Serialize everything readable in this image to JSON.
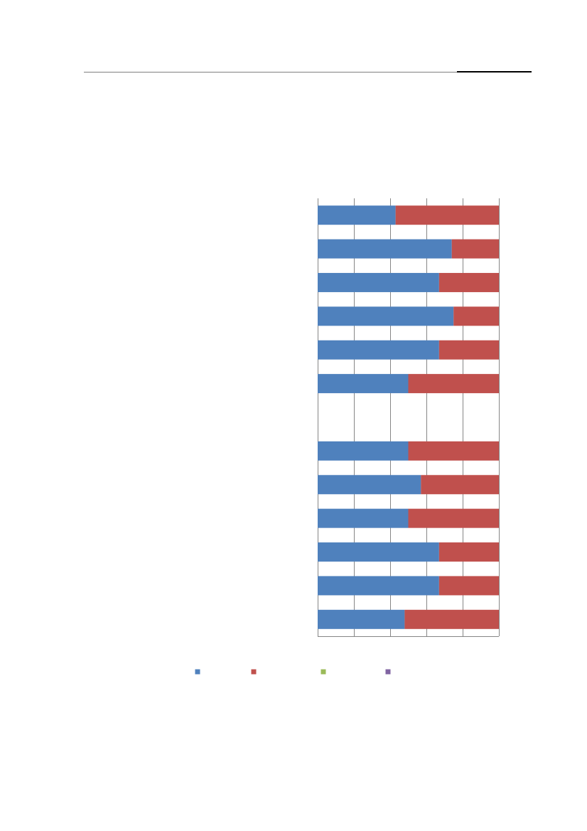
{
  "colors": {
    "series_1": "#4f81bd",
    "series_2": "#c0504d",
    "series_3": "#9bbb59",
    "series_4": "#8064a2",
    "gridline": "#868686",
    "header_rule": "#7f7f7f"
  },
  "chart_data": {
    "type": "bar",
    "orientation": "horizontal",
    "stacking": "percent",
    "categories": [
      "",
      "",
      "",
      "",
      "",
      "",
      "",
      "",
      "",
      "",
      "",
      "",
      ""
    ],
    "series": [
      {
        "values": [
          43,
          74,
          67,
          75,
          67,
          50,
          null,
          50,
          57,
          50,
          67,
          67,
          48
        ]
      },
      {
        "values": [
          57,
          26,
          33,
          25,
          33,
          50,
          null,
          50,
          43,
          50,
          33,
          33,
          52
        ]
      },
      {
        "values": [
          0,
          0,
          0,
          0,
          0,
          0,
          null,
          0,
          0,
          0,
          0,
          0,
          0
        ]
      },
      {
        "values": [
          0,
          0,
          0,
          0,
          0,
          0,
          null,
          0,
          0,
          0,
          0,
          0,
          0
        ]
      }
    ],
    "xlim": [
      0,
      100
    ],
    "x_gridlines": [
      0,
      20,
      40,
      60,
      80,
      100
    ],
    "grid": true,
    "legend": "bottom"
  }
}
